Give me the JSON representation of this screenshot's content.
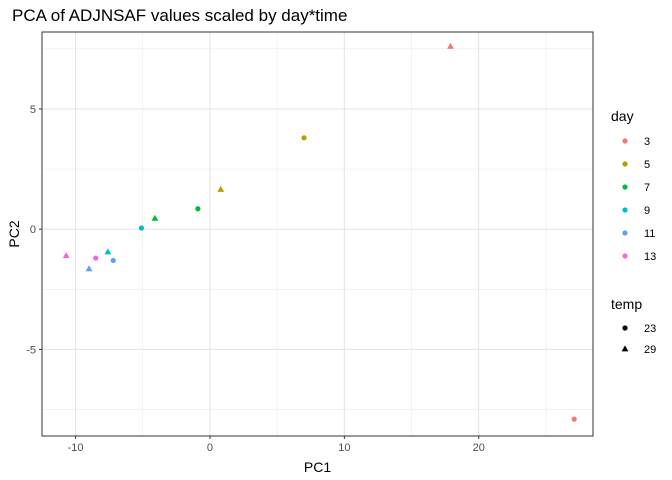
{
  "chart_data": {
    "type": "scatter",
    "title": "PCA of ADJNSAF values scaled by day*time",
    "xlabel": "PC1",
    "ylabel": "PC2",
    "xlim": [
      -12.5,
      28.5
    ],
    "ylim": [
      -8.6,
      8.2
    ],
    "x_ticks": [
      -10,
      0,
      10,
      20
    ],
    "x_tick_labels": [
      "-10",
      "0",
      "10",
      "20"
    ],
    "y_ticks": [
      -5,
      0,
      5
    ],
    "y_tick_labels": [
      "-5",
      "0",
      "5"
    ],
    "x_minor": [
      -5,
      5,
      15,
      25
    ],
    "y_minor": [
      -7.5,
      -2.5,
      2.5,
      7.5
    ],
    "grid": true,
    "legend_position": "right",
    "color_legend": {
      "title": "day",
      "entries": [
        {
          "label": "3",
          "color": "#F8766D"
        },
        {
          "label": "5",
          "color": "#B79F00"
        },
        {
          "label": "7",
          "color": "#00BA38"
        },
        {
          "label": "9",
          "color": "#00BFC4"
        },
        {
          "label": "11",
          "color": "#619CFF"
        },
        {
          "label": "13",
          "color": "#F564E3"
        }
      ]
    },
    "shape_legend": {
      "title": "temp",
      "entries": [
        {
          "label": "23",
          "shape": "circle"
        },
        {
          "label": "29",
          "shape": "triangle"
        }
      ]
    },
    "points": [
      {
        "x": 17.9,
        "y": 7.6,
        "day": "3",
        "temp": "29"
      },
      {
        "x": 27.1,
        "y": -7.9,
        "day": "3",
        "temp": "23"
      },
      {
        "x": 7.0,
        "y": 3.8,
        "day": "5",
        "temp": "23"
      },
      {
        "x": 0.8,
        "y": 1.65,
        "day": "5",
        "temp": "29"
      },
      {
        "x": -0.9,
        "y": 0.85,
        "day": "7",
        "temp": "23"
      },
      {
        "x": -4.1,
        "y": 0.45,
        "day": "7",
        "temp": "29"
      },
      {
        "x": -5.1,
        "y": 0.05,
        "day": "9",
        "temp": "23"
      },
      {
        "x": -7.6,
        "y": -0.95,
        "day": "9",
        "temp": "29"
      },
      {
        "x": -7.2,
        "y": -1.3,
        "day": "11",
        "temp": "23"
      },
      {
        "x": -9.0,
        "y": -1.65,
        "day": "11",
        "temp": "29"
      },
      {
        "x": -8.5,
        "y": -1.2,
        "day": "13",
        "temp": "23"
      },
      {
        "x": -10.7,
        "y": -1.1,
        "day": "13",
        "temp": "29"
      }
    ]
  }
}
